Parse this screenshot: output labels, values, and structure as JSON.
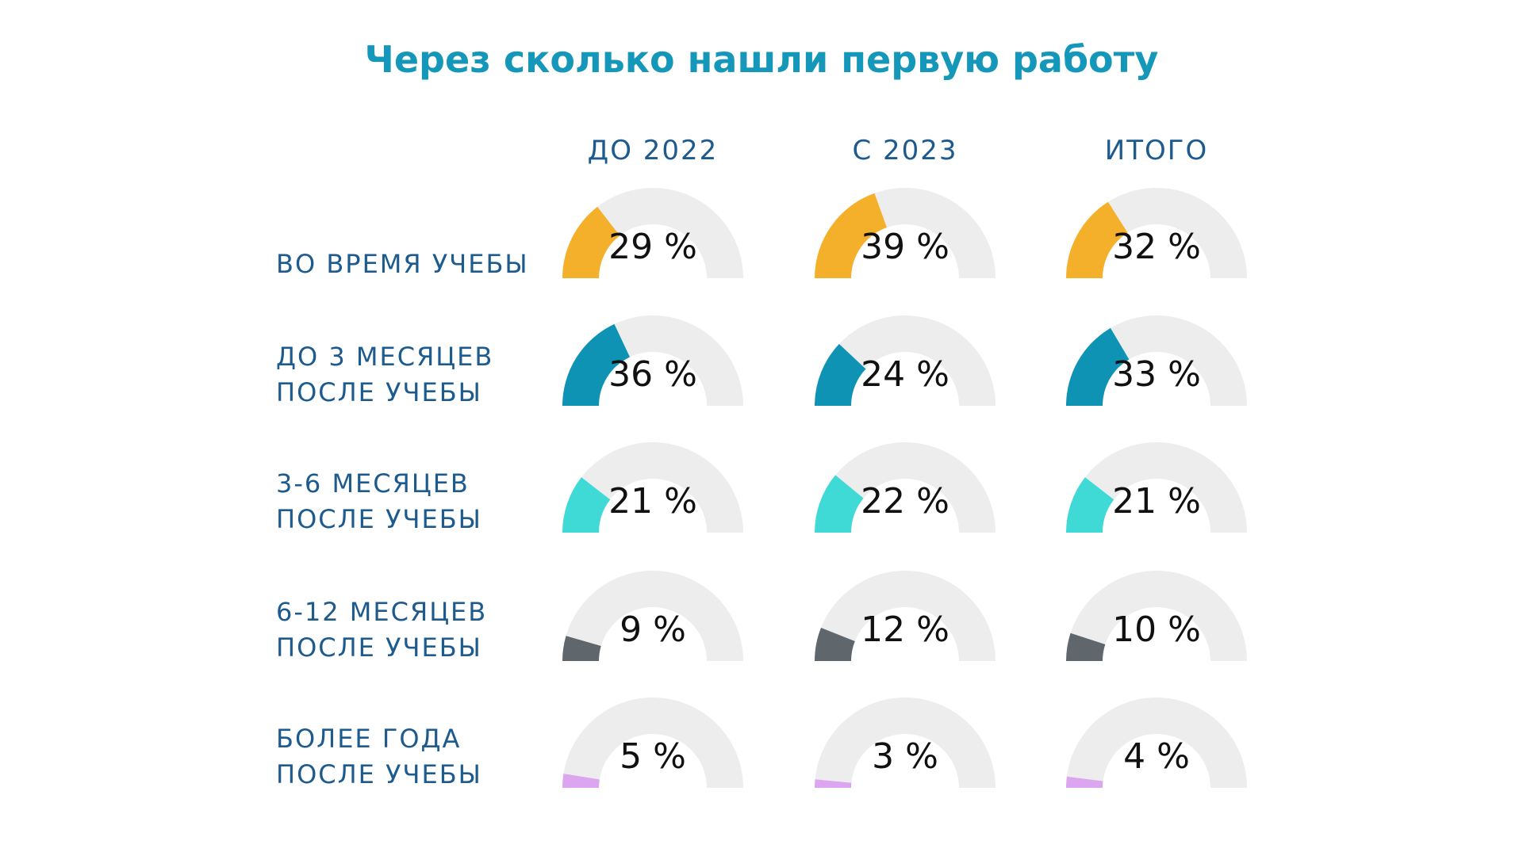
{
  "chart_data": {
    "type": "gauge-grid",
    "title": "Через сколько нашли первую работу",
    "columns": [
      "ДО 2022",
      "С 2023",
      "ИТОГО"
    ],
    "rows": [
      {
        "label": [
          "ВО ВРЕМЯ УЧЕБЫ"
        ],
        "color": "#f4b02a",
        "values": [
          29,
          39,
          32
        ],
        "labels": [
          "29 %",
          "39 %",
          "32 %"
        ]
      },
      {
        "label": [
          "ДО 3 МЕСЯЦЕВ",
          "ПОСЛЕ УЧЕБЫ"
        ],
        "color": "#0e93b5",
        "values": [
          36,
          24,
          33
        ],
        "labels": [
          "36 %",
          "24 %",
          "33 %"
        ]
      },
      {
        "label": [
          "3-6 МЕСЯЦЕВ",
          "ПОСЛЕ УЧЕБЫ"
        ],
        "color": "#3fd9d6",
        "values": [
          21,
          22,
          21
        ],
        "labels": [
          "21 %",
          "22 %",
          "21 %"
        ]
      },
      {
        "label": [
          "6-12 МЕСЯЦЕВ",
          "ПОСЛЕ УЧЕБЫ"
        ],
        "color": "#5f666c",
        "values": [
          9,
          12,
          10
        ],
        "labels": [
          "9 %",
          "12 %",
          "10 %"
        ]
      },
      {
        "label": [
          "БОЛЕЕ ГОДА",
          "ПОСЛЕ УЧЕБЫ"
        ],
        "color": "#dba6ef",
        "values": [
          5,
          3,
          4
        ],
        "labels": [
          "5 %",
          "3 %",
          "4 %"
        ]
      }
    ],
    "max": 100,
    "track_color": "#ededed"
  }
}
